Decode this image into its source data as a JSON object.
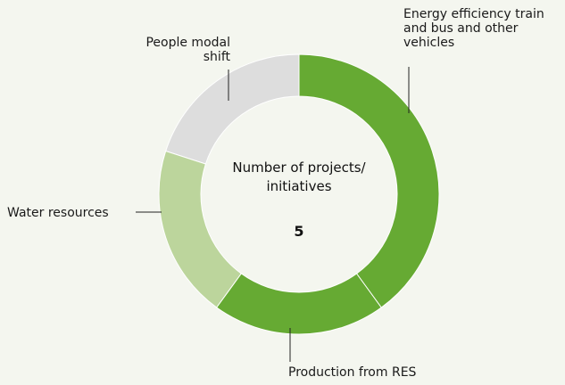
{
  "chart_data": {
    "type": "donut",
    "center_label": "Number of projects/ initiatives",
    "center_value": 5,
    "categories": [
      "Energy efficiency train and bus and other vehicles",
      "Production from RES",
      "Water resources",
      "People modal shift"
    ],
    "values": [
      2,
      1,
      1,
      1
    ],
    "colors": [
      "#66aa33",
      "#66aa33",
      "#bcd59c",
      "#dddddd"
    ]
  }
}
